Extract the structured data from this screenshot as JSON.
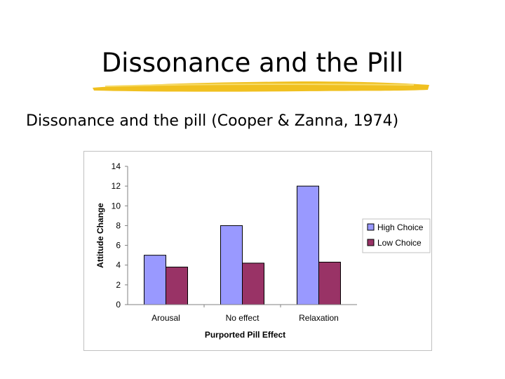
{
  "slide": {
    "title": "Dissonance and the Pill",
    "subtitle": "Dissonance and the pill (Cooper & Zanna, 1974)"
  },
  "colors": {
    "swoosh": "#f0c020",
    "high_choice": "#9999ff",
    "low_choice": "#993366"
  },
  "chart_data": {
    "type": "bar",
    "categories": [
      "Arousal",
      "No effect",
      "Relaxation"
    ],
    "series": [
      {
        "name": "High Choice",
        "values": [
          5,
          8,
          12
        ]
      },
      {
        "name": "Low Choice",
        "values": [
          3.8,
          4.2,
          4.3
        ]
      }
    ],
    "xlabel": "Purported Pill Effect",
    "ylabel": "Attitude Change",
    "ylim": [
      0,
      14
    ],
    "yticks": [
      0,
      2,
      4,
      6,
      8,
      10,
      12,
      14
    ],
    "grid": false,
    "legend_position": "right"
  }
}
